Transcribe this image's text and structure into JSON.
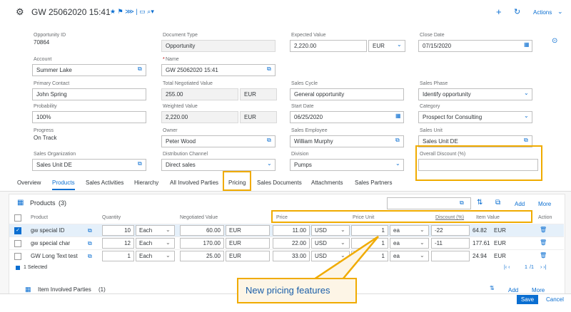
{
  "header": {
    "title": "GW 25062020 15:41",
    "actions": "Actions"
  },
  "fields": [
    [
      {
        "label": "Opportunity ID",
        "value": "70864"
      },
      {
        "label": "Document Type",
        "value": "Opportunity"
      },
      {
        "label": "Expected Value",
        "value": "2,220.00",
        "unit": "EUR"
      },
      {
        "label": "Close Date",
        "value": "07/15/2020"
      }
    ],
    [
      {
        "label": "Account",
        "value": "Summer Lake"
      },
      {
        "label": "Name",
        "value": "GW 25062020 15:41"
      }
    ],
    [
      {
        "label": "Primary Contact",
        "value": "John Spring"
      },
      {
        "label": "Total Negotiated Value",
        "value": "255.00",
        "unit": "EUR"
      },
      {
        "label": "Sales Cycle",
        "value": "General opportunity"
      },
      {
        "label": "Sales Phase",
        "value": "Identify opportunity"
      }
    ],
    [
      {
        "label": "Probability",
        "value": "100%"
      },
      {
        "label": "Weighted Value",
        "value": "2,220.00",
        "unit": "EUR"
      },
      {
        "label": "Start Date",
        "value": "06/25/2020"
      },
      {
        "label": "Category",
        "value": "Prospect for Consulting"
      }
    ],
    [
      {
        "label": "Progress",
        "value": "On Track"
      },
      {
        "label": "Owner",
        "value": "Peter Wood"
      },
      {
        "label": "Sales Employee",
        "value": "William Murphy"
      },
      {
        "label": "Sales Unit",
        "value": "Sales Unit DE"
      }
    ],
    [
      {
        "label": "Sales Organization",
        "value": "Sales Unit DE"
      },
      {
        "label": "Distribution Channel",
        "value": "Direct sales"
      },
      {
        "label": "Division",
        "value": "Pumps"
      },
      {
        "label": "Overall Discount (%)"
      }
    ]
  ],
  "tabs": [
    "Overview",
    "Products",
    "Sales Activities",
    "Hierarchy",
    "All Involved Parties",
    "Pricing",
    "Sales Documents",
    "Attachments",
    "Sales Partners"
  ],
  "products": {
    "title": "Products",
    "count": "(3)",
    "add": "Add",
    "more": "More",
    "columns": [
      "Product",
      "Quantity",
      "Negotiated Value",
      "Price",
      "Price Unit",
      "Discount (%)",
      "Item Value",
      "Action"
    ],
    "rows": [
      {
        "product": "gw special ID",
        "quantity": "10",
        "qty_unit": "Each",
        "negotiated": "60.00",
        "neg_currency": "EUR",
        "price": "11.00",
        "price_currency": "USD",
        "price_unit": "1",
        "unit": "ea",
        "discount": "-22",
        "item_value": "64.82",
        "item_currency": "EUR"
      },
      {
        "product": "gw special char",
        "quantity": "12",
        "qty_unit": "Each",
        "negotiated": "170.00",
        "neg_currency": "EUR",
        "price": "22.00",
        "price_currency": "USD",
        "price_unit": "1",
        "unit": "ea",
        "discount": "-11",
        "item_value": "177.61",
        "item_currency": "EUR"
      },
      {
        "product": "GW Long Text test",
        "quantity": "1",
        "qty_unit": "Each",
        "negotiated": "25.00",
        "neg_currency": "EUR",
        "price": "33.00",
        "price_currency": "USD",
        "price_unit": "1",
        "unit": "ea",
        "item_value": "24.94",
        "item_currency": "EUR"
      }
    ],
    "selected": "1 Selected",
    "page": "1",
    "pages": "/1"
  },
  "involved": {
    "title": "Item Involved Parties",
    "count": "(1)",
    "add": "Add",
    "more": "More"
  },
  "footer": {
    "save": "Save",
    "cancel": "Cancel"
  },
  "callout": "New pricing features"
}
